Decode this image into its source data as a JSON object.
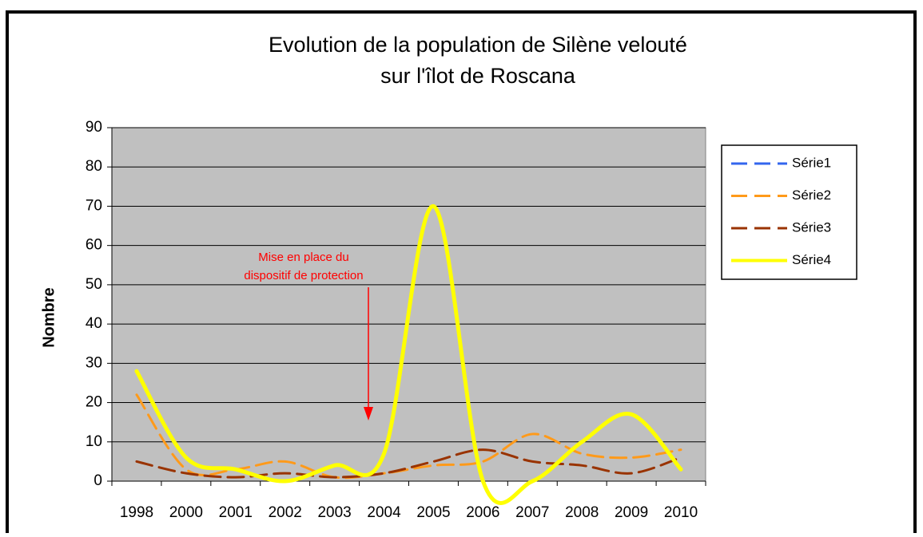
{
  "chart_data": {
    "type": "line",
    "title": [
      "Evolution de la population de Silène velouté",
      "sur l'îlot de Roscana"
    ],
    "ylabel": "Nombre",
    "annotation": [
      "Mise en place du",
      "dispositif de protection"
    ],
    "categories": [
      "1998",
      "2000",
      "2001",
      "2002",
      "2003",
      "2004",
      "2005",
      "2006",
      "2007",
      "2008",
      "2009",
      "2010"
    ],
    "series": [
      {
        "name": "Série1",
        "color": "#3366ee",
        "dashed": true,
        "values": [
          null,
          null,
          null,
          null,
          null,
          null,
          null,
          null,
          null,
          null,
          null,
          null
        ]
      },
      {
        "name": "Série2",
        "color": "#ff9a1a",
        "dashed": true,
        "values": [
          22,
          3,
          3,
          5,
          1,
          2,
          4,
          5,
          12,
          7,
          6,
          8
        ]
      },
      {
        "name": "Série3",
        "color": "#993300",
        "dashed": true,
        "values": [
          5,
          2,
          1,
          2,
          1,
          2,
          5,
          8,
          5,
          4,
          2,
          6
        ]
      },
      {
        "name": "Série4",
        "color": "#ffff00",
        "dashed": false,
        "values": [
          28,
          6,
          3,
          0,
          4,
          7,
          70,
          0,
          0,
          10,
          17,
          3
        ]
      }
    ],
    "ylim": [
      0,
      90
    ],
    "yticks": [
      0,
      10,
      20,
      30,
      40,
      50,
      60,
      70,
      80,
      90
    ],
    "grid": true,
    "smooth": true,
    "legend": "right"
  }
}
